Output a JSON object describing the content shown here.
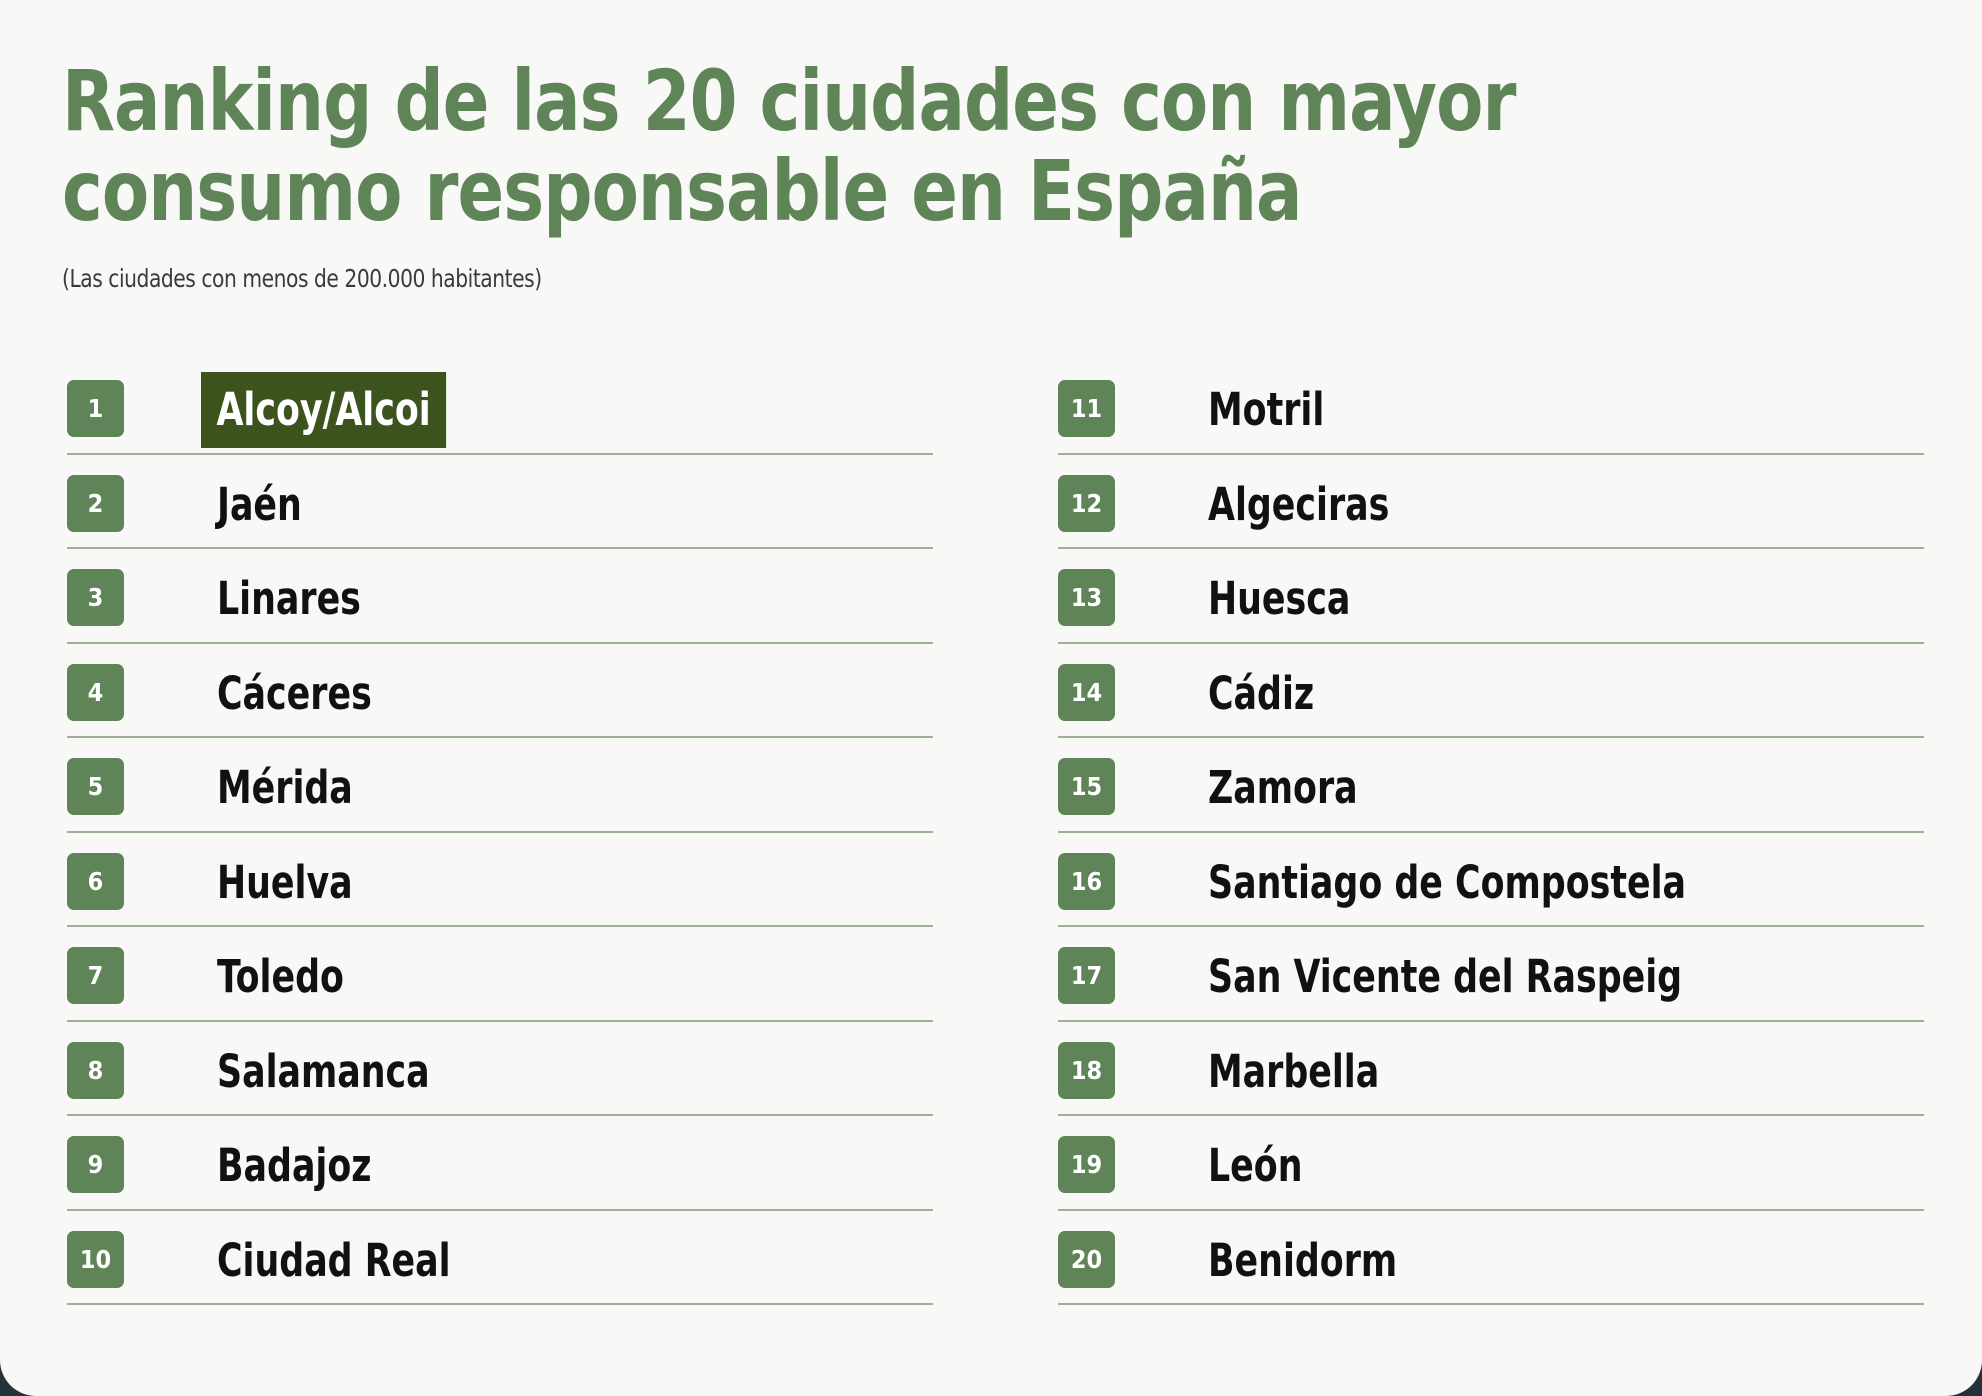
{
  "title": "Ranking de las 20 ciudades con mayor consumo responsable en España",
  "subtitle": "(Las ciudades con menos de 200.000 habitantes)",
  "colors": {
    "accent_green": "#5e8457",
    "highlight_green": "#3c531e",
    "divider": "#9bb195",
    "background": "#f8f8f7"
  },
  "ranking": [
    {
      "rank": "1",
      "city": "Alcoy/Alcoi",
      "highlighted": true
    },
    {
      "rank": "2",
      "city": "Jaén"
    },
    {
      "rank": "3",
      "city": "Linares"
    },
    {
      "rank": "4",
      "city": "Cáceres"
    },
    {
      "rank": "5",
      "city": "Mérida"
    },
    {
      "rank": "6",
      "city": "Huelva"
    },
    {
      "rank": "7",
      "city": "Toledo"
    },
    {
      "rank": "8",
      "city": "Salamanca"
    },
    {
      "rank": "9",
      "city": "Badajoz"
    },
    {
      "rank": "10",
      "city": "Ciudad Real"
    },
    {
      "rank": "11",
      "city": "Motril"
    },
    {
      "rank": "12",
      "city": "Algeciras"
    },
    {
      "rank": "13",
      "city": "Huesca"
    },
    {
      "rank": "14",
      "city": "Cádiz"
    },
    {
      "rank": "15",
      "city": "Zamora"
    },
    {
      "rank": "16",
      "city": "Santiago de Compostela"
    },
    {
      "rank": "17",
      "city": "San Vicente del Raspeig"
    },
    {
      "rank": "18",
      "city": "Marbella"
    },
    {
      "rank": "19",
      "city": "León"
    },
    {
      "rank": "20",
      "city": "Benidorm"
    }
  ]
}
